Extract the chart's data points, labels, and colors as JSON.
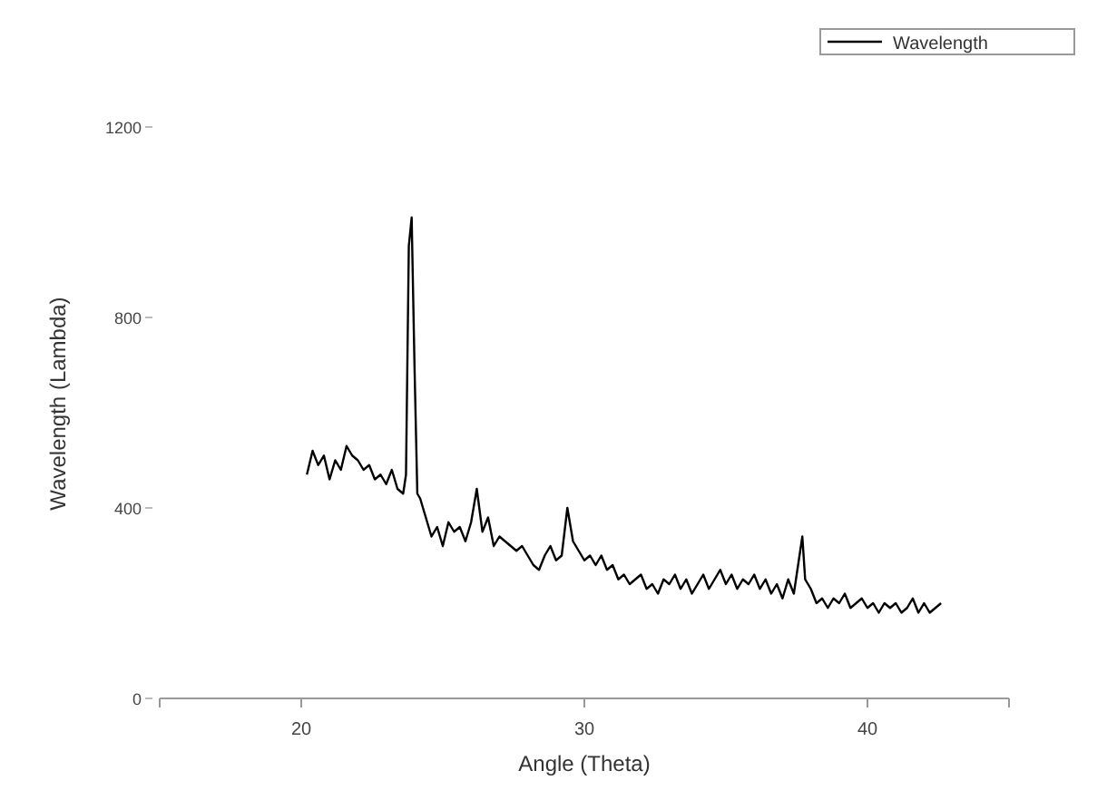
{
  "chart_data": {
    "type": "line",
    "xlabel": "Angle (Theta)",
    "ylabel": "Wavelength (Lambda)",
    "xlim": [
      15,
      45
    ],
    "xticks": [
      {
        "value": 15,
        "label": null
      },
      20,
      30,
      40,
      {
        "value": 45,
        "label": null
      }
    ],
    "ylim": [
      0,
      1200
    ],
    "yticks": [
      0,
      400,
      800,
      1200
    ],
    "grid": false,
    "legend": "top right",
    "series": [
      {
        "name": "Wavelength",
        "color": "#000000",
        "x": [
          20.2,
          20.4,
          20.6,
          20.8,
          21.0,
          21.2,
          21.4,
          21.6,
          21.8,
          22.0,
          22.2,
          22.4,
          22.6,
          22.8,
          23.0,
          23.2,
          23.4,
          23.6,
          23.7,
          23.8,
          23.9,
          24.0,
          24.1,
          24.2,
          24.4,
          24.6,
          24.8,
          25.0,
          25.2,
          25.4,
          25.6,
          25.8,
          26.0,
          26.2,
          26.4,
          26.6,
          26.8,
          27.0,
          27.2,
          27.4,
          27.6,
          27.8,
          28.0,
          28.2,
          28.4,
          28.6,
          28.8,
          29.0,
          29.2,
          29.4,
          29.6,
          29.8,
          30.0,
          30.2,
          30.4,
          30.6,
          30.8,
          31.0,
          31.2,
          31.4,
          31.6,
          31.8,
          32.0,
          32.2,
          32.4,
          32.6,
          32.8,
          33.0,
          33.2,
          33.4,
          33.6,
          33.8,
          34.0,
          34.2,
          34.4,
          34.6,
          34.8,
          35.0,
          35.2,
          35.4,
          35.6,
          35.8,
          36.0,
          36.2,
          36.4,
          36.6,
          36.8,
          37.0,
          37.2,
          37.4,
          37.6,
          37.7,
          37.8,
          38.0,
          38.2,
          38.4,
          38.6,
          38.8,
          39.0,
          39.2,
          39.4,
          39.6,
          39.8,
          40.0,
          40.2,
          40.4,
          40.6,
          40.8,
          41.0,
          41.2,
          41.4,
          41.6,
          41.8,
          42.0,
          42.2,
          42.4,
          42.6
        ],
        "values": [
          470,
          520,
          490,
          510,
          460,
          500,
          480,
          530,
          510,
          500,
          480,
          490,
          460,
          470,
          450,
          480,
          440,
          430,
          470,
          950,
          1010,
          700,
          430,
          420,
          380,
          340,
          360,
          320,
          370,
          350,
          360,
          330,
          370,
          440,
          350,
          380,
          320,
          340,
          330,
          320,
          310,
          320,
          300,
          280,
          270,
          300,
          320,
          290,
          300,
          400,
          330,
          310,
          290,
          300,
          280,
          300,
          270,
          280,
          250,
          260,
          240,
          250,
          260,
          230,
          240,
          220,
          250,
          240,
          260,
          230,
          250,
          220,
          240,
          260,
          230,
          250,
          270,
          240,
          260,
          230,
          250,
          240,
          260,
          230,
          250,
          220,
          240,
          210,
          250,
          220,
          300,
          340,
          250,
          230,
          200,
          210,
          190,
          210,
          200,
          220,
          190,
          200,
          210,
          190,
          200,
          180,
          200,
          190,
          200,
          180,
          190,
          210,
          180,
          200,
          180,
          190,
          200
        ]
      }
    ]
  }
}
